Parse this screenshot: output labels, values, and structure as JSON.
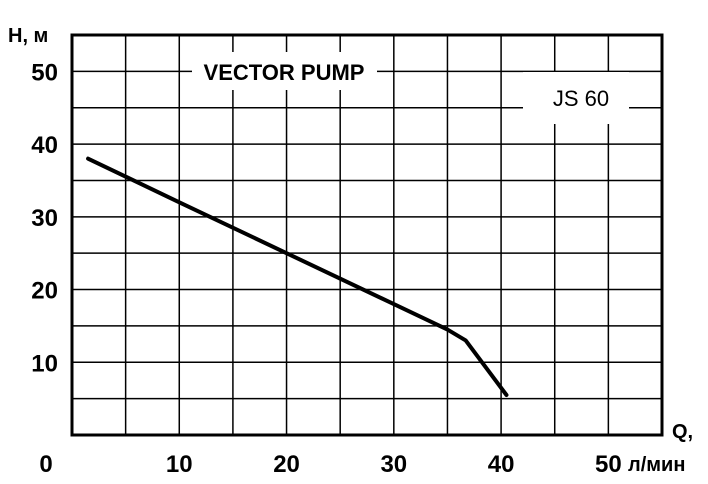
{
  "chart_data": {
    "type": "line",
    "title": "VECTOR PUMP",
    "model": "JS 60",
    "ylabel": "H, м",
    "xlabel_top": "Q,",
    "xlabel_unit": "л/мин",
    "xlim": [
      0,
      55
    ],
    "ylim": [
      0,
      55
    ],
    "x_ticks": [
      "0",
      "10",
      "20",
      "30",
      "40",
      "50"
    ],
    "y_ticks": [
      "10",
      "20",
      "30",
      "40",
      "50"
    ],
    "grid": true,
    "series": [
      {
        "x": [
          1.5,
          10,
          20,
          30,
          35,
          36.7,
          40.5
        ],
        "y": [
          38,
          32,
          25,
          18,
          14.5,
          13,
          5.5
        ],
        "color": "#000000"
      }
    ]
  }
}
